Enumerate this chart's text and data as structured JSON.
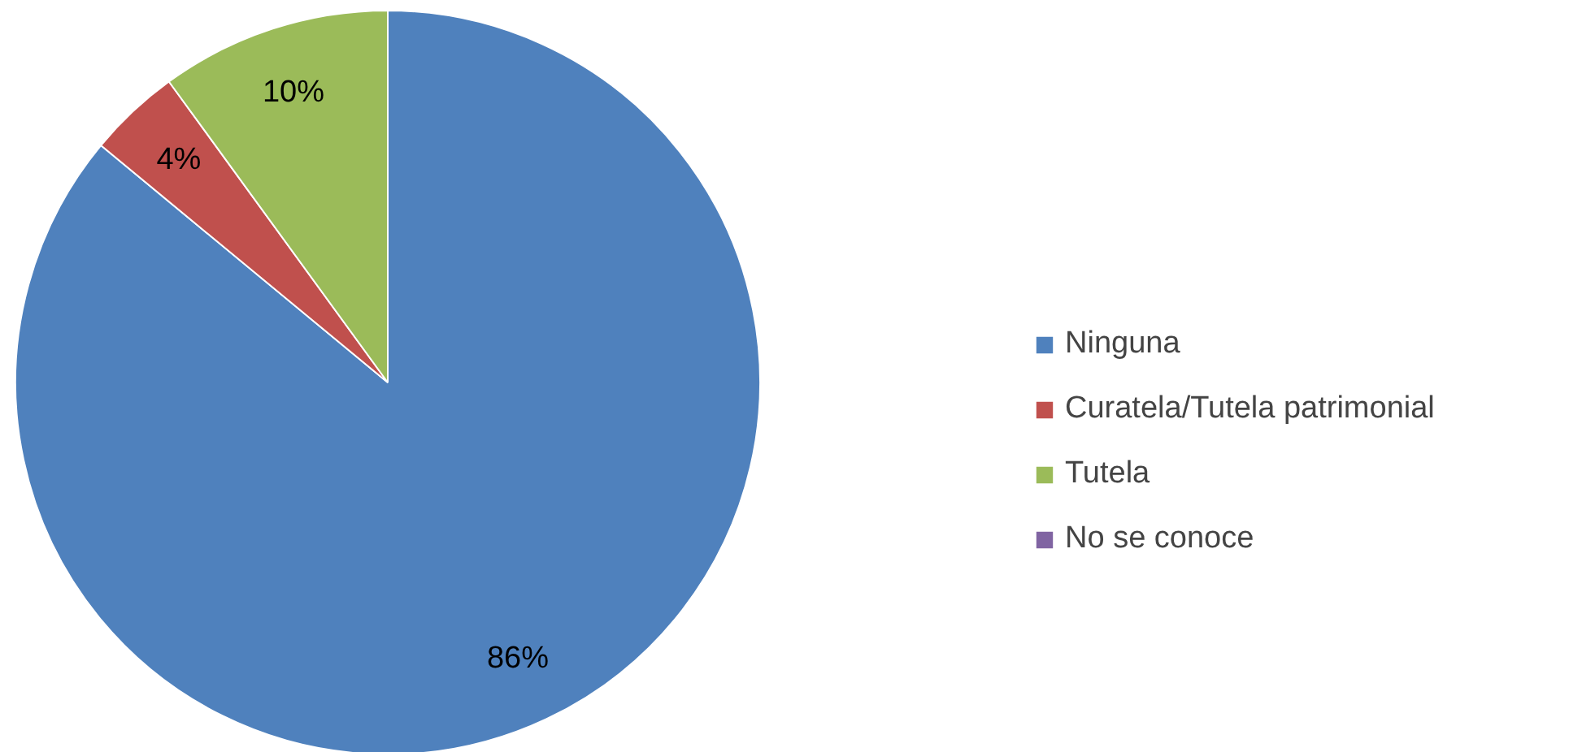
{
  "chart_data": {
    "type": "pie",
    "categories": [
      "Ninguna",
      "Curatela/Tutela patrimonial",
      "Tutela",
      "No se conoce"
    ],
    "values": [
      86,
      4,
      10,
      0
    ],
    "colors": [
      "#4f81bd",
      "#c0504d",
      "#9bbb59",
      "#8064a2"
    ],
    "value_labels": [
      "86%",
      "4%",
      "10%",
      null
    ],
    "legend": "right"
  }
}
